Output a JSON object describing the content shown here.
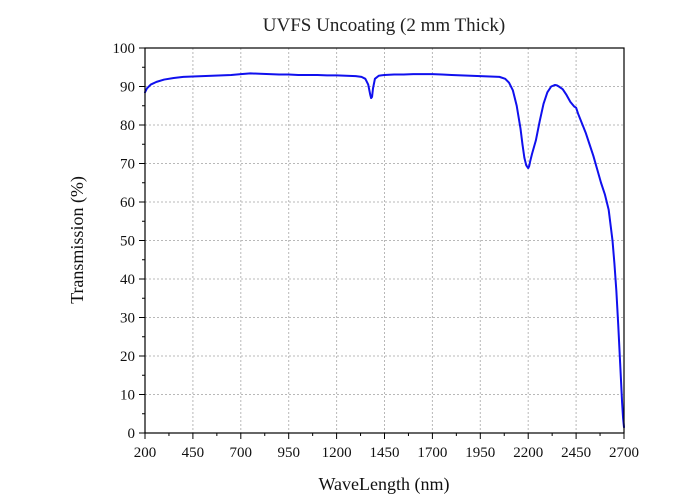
{
  "chart_data": {
    "type": "line",
    "title": "UVFS Uncoating (2 mm Thick)",
    "xlabel": "WaveLength (nm)",
    "ylabel": "Transmission (%)",
    "xlim": [
      200,
      2700
    ],
    "ylim": [
      0,
      100
    ],
    "xticks": [
      "200",
      "450",
      "700",
      "950",
      "1200",
      "1450",
      "1700",
      "1950",
      "2200",
      "2450",
      "2700"
    ],
    "yticks": [
      "0",
      "10",
      "20",
      "30",
      "40",
      "50",
      "60",
      "70",
      "80",
      "90",
      "100"
    ],
    "grid": true,
    "line_color": "#1010ee",
    "series": [
      {
        "x": [
          200,
          210,
          230,
          260,
          300,
          350,
          400,
          450,
          500,
          550,
          600,
          650,
          700,
          750,
          800,
          850,
          900,
          950,
          1000,
          1050,
          1100,
          1150,
          1200,
          1250,
          1300,
          1330,
          1350,
          1365,
          1375,
          1380,
          1385,
          1390,
          1400,
          1420,
          1450,
          1500,
          1550,
          1600,
          1650,
          1700,
          1750,
          1800,
          1850,
          1900,
          1950,
          2000,
          2050,
          2080,
          2100,
          2120,
          2140,
          2160,
          2170,
          2180,
          2190,
          2200,
          2205,
          2210,
          2220,
          2240,
          2260,
          2280,
          2300,
          2320,
          2340,
          2350,
          2360,
          2380,
          2400,
          2420,
          2440,
          2450,
          2460,
          2480,
          2500,
          2520,
          2540,
          2560,
          2580,
          2600,
          2620,
          2640,
          2650,
          2660,
          2670,
          2680,
          2690,
          2695,
          2700
        ],
        "y": [
          88.5,
          89.5,
          90.5,
          91.2,
          91.8,
          92.2,
          92.5,
          92.6,
          92.7,
          92.8,
          92.9,
          93.0,
          93.2,
          93.4,
          93.3,
          93.2,
          93.1,
          93.1,
          93.0,
          93.0,
          93.0,
          92.9,
          92.9,
          92.8,
          92.7,
          92.5,
          92.0,
          90.5,
          88.0,
          87.0,
          87.3,
          89.5,
          92.0,
          92.8,
          93.0,
          93.1,
          93.1,
          93.2,
          93.2,
          93.2,
          93.1,
          93.0,
          92.9,
          92.8,
          92.7,
          92.6,
          92.5,
          92.0,
          91.0,
          89.0,
          85.0,
          79.0,
          75.0,
          71.5,
          69.5,
          68.8,
          69.3,
          70.5,
          72.5,
          76.0,
          81.0,
          85.5,
          88.5,
          90.0,
          90.4,
          90.3,
          90.0,
          89.3,
          87.8,
          86.0,
          84.8,
          84.5,
          83.0,
          80.5,
          78.0,
          75.0,
          72.0,
          68.5,
          65.0,
          62.0,
          58.0,
          50.0,
          44.0,
          37.0,
          28.0,
          18.0,
          8.0,
          4.0,
          1.5
        ]
      }
    ]
  }
}
